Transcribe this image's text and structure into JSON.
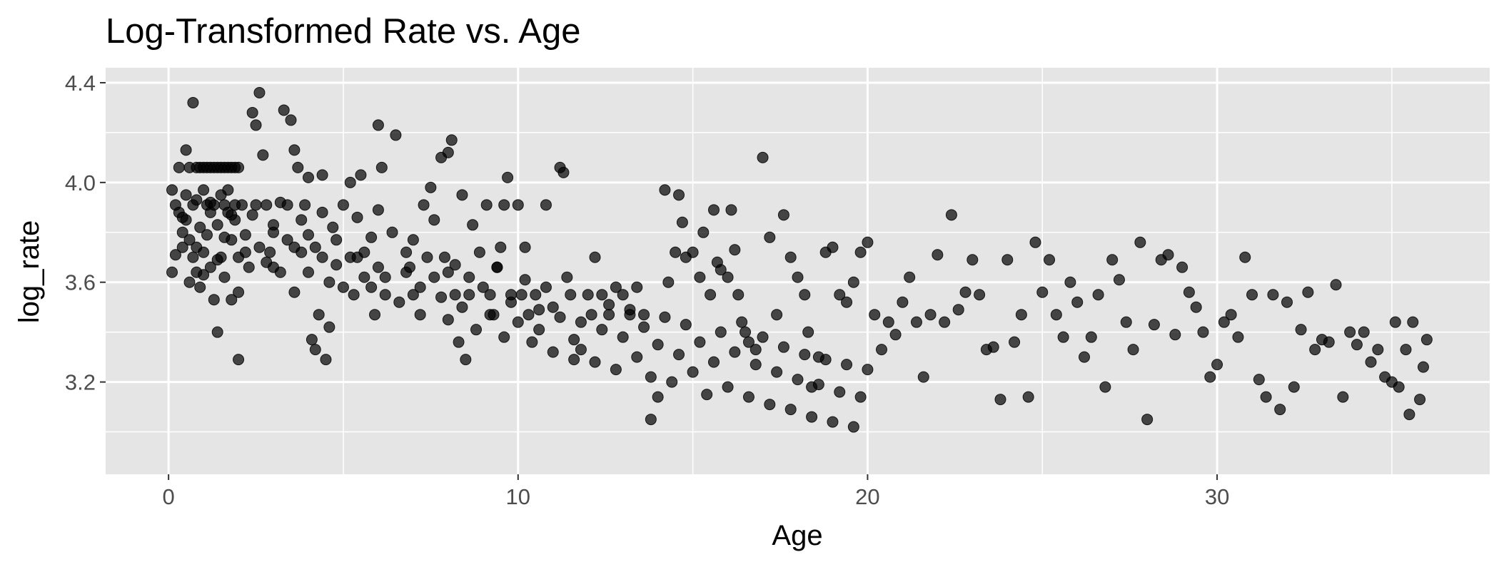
{
  "chart_data": {
    "type": "scatter",
    "title": "Log-Transformed Rate vs. Age",
    "xlabel": "Age",
    "ylabel": "log_rate",
    "xlim": [
      -1.8,
      37.8
    ],
    "ylim": [
      2.83,
      4.46
    ],
    "x_ticks": [
      0,
      10,
      20,
      30
    ],
    "x_tick_labels": [
      "0",
      "10",
      "20",
      "30"
    ],
    "y_ticks": [
      3.2,
      3.6,
      4.0,
      4.4
    ],
    "y_tick_labels": [
      "3.2",
      "3.6",
      "4.0",
      "4.4"
    ],
    "grid": true,
    "legend": "none",
    "colors": {
      "panel_background": "#e5e5e5",
      "grid": "#ffffff",
      "point": "#000000",
      "point_opacity": 0.7,
      "tick_text": "#4d4d4d"
    },
    "points": [
      [
        0.1,
        3.97
      ],
      [
        0.1,
        3.64
      ],
      [
        0.2,
        3.91
      ],
      [
        0.3,
        4.06
      ],
      [
        0.3,
        3.88
      ],
      [
        0.4,
        3.74
      ],
      [
        0.4,
        3.8
      ],
      [
        0.5,
        4.13
      ],
      [
        0.5,
        3.95
      ],
      [
        0.5,
        3.85
      ],
      [
        0.6,
        3.77
      ],
      [
        0.6,
        4.06
      ],
      [
        0.7,
        4.32
      ],
      [
        0.7,
        3.91
      ],
      [
        0.7,
        3.7
      ],
      [
        0.8,
        4.06
      ],
      [
        0.8,
        3.93
      ],
      [
        0.8,
        3.64
      ],
      [
        0.9,
        4.06
      ],
      [
        0.9,
        3.82
      ],
      [
        0.9,
        3.58
      ],
      [
        1.0,
        4.06
      ],
      [
        1.0,
        3.97
      ],
      [
        1.0,
        3.72
      ],
      [
        1.1,
        4.06
      ],
      [
        1.1,
        3.91
      ],
      [
        1.1,
        3.79
      ],
      [
        1.2,
        4.06
      ],
      [
        1.2,
        3.88
      ],
      [
        1.2,
        3.66
      ],
      [
        1.3,
        4.06
      ],
      [
        1.3,
        3.91
      ],
      [
        1.3,
        3.53
      ],
      [
        1.4,
        4.06
      ],
      [
        1.4,
        3.83
      ],
      [
        1.4,
        3.4
      ],
      [
        1.5,
        4.06
      ],
      [
        1.5,
        3.95
      ],
      [
        1.5,
        3.7
      ],
      [
        1.6,
        4.06
      ],
      [
        1.6,
        3.91
      ],
      [
        1.6,
        3.62
      ],
      [
        1.7,
        4.06
      ],
      [
        1.7,
        3.97
      ],
      [
        1.7,
        3.88
      ],
      [
        1.8,
        4.06
      ],
      [
        1.8,
        3.77
      ],
      [
        1.8,
        3.53
      ],
      [
        1.9,
        4.06
      ],
      [
        1.9,
        3.91
      ],
      [
        1.9,
        3.85
      ],
      [
        2.0,
        4.06
      ],
      [
        2.0,
        3.7
      ],
      [
        2.0,
        3.29
      ],
      [
        2.1,
        3.91
      ],
      [
        2.2,
        3.79
      ],
      [
        2.3,
        3.66
      ],
      [
        2.4,
        4.28
      ],
      [
        2.5,
        4.23
      ],
      [
        2.5,
        3.91
      ],
      [
        2.6,
        4.36
      ],
      [
        2.7,
        4.11
      ],
      [
        2.8,
        3.91
      ],
      [
        2.9,
        3.72
      ],
      [
        3.0,
        3.66
      ],
      [
        3.0,
        3.83
      ],
      [
        3.2,
        3.64
      ],
      [
        3.3,
        4.29
      ],
      [
        3.4,
        3.91
      ],
      [
        3.5,
        4.25
      ],
      [
        3.6,
        4.13
      ],
      [
        3.6,
        3.74
      ],
      [
        3.7,
        4.06
      ],
      [
        3.8,
        3.72
      ],
      [
        3.9,
        3.91
      ],
      [
        4.0,
        4.02
      ],
      [
        4.0,
        3.79
      ],
      [
        4.1,
        3.37
      ],
      [
        4.2,
        3.33
      ],
      [
        4.3,
        3.47
      ],
      [
        4.4,
        4.03
      ],
      [
        4.4,
        3.7
      ],
      [
        4.5,
        3.29
      ],
      [
        4.6,
        3.42
      ],
      [
        4.7,
        3.82
      ],
      [
        4.8,
        3.67
      ],
      [
        5.0,
        3.91
      ],
      [
        5.2,
        4.0
      ],
      [
        5.3,
        3.55
      ],
      [
        5.4,
        3.7
      ],
      [
        5.5,
        4.03
      ],
      [
        5.6,
        3.72
      ],
      [
        5.8,
        3.58
      ],
      [
        5.9,
        3.47
      ],
      [
        6.0,
        4.23
      ],
      [
        6.0,
        3.89
      ],
      [
        6.1,
        4.06
      ],
      [
        6.2,
        3.62
      ],
      [
        6.5,
        4.19
      ],
      [
        6.8,
        3.72
      ],
      [
        6.9,
        3.66
      ],
      [
        7.0,
        3.55
      ],
      [
        7.2,
        3.47
      ],
      [
        7.3,
        3.91
      ],
      [
        7.5,
        3.98
      ],
      [
        7.6,
        3.85
      ],
      [
        7.8,
        4.1
      ],
      [
        7.9,
        3.7
      ],
      [
        8.0,
        4.12
      ],
      [
        8.0,
        3.64
      ],
      [
        8.1,
        4.17
      ],
      [
        8.2,
        3.55
      ],
      [
        8.3,
        3.36
      ],
      [
        8.4,
        3.95
      ],
      [
        8.5,
        3.29
      ],
      [
        8.6,
        3.55
      ],
      [
        8.7,
        3.83
      ],
      [
        8.9,
        3.72
      ],
      [
        9.1,
        3.91
      ],
      [
        9.2,
        3.55
      ],
      [
        9.3,
        3.47
      ],
      [
        9.4,
        3.66
      ],
      [
        9.5,
        3.74
      ],
      [
        9.6,
        3.91
      ],
      [
        9.7,
        4.02
      ],
      [
        9.8,
        3.55
      ],
      [
        10.0,
        3.91
      ],
      [
        10.1,
        3.55
      ],
      [
        10.2,
        3.74
      ],
      [
        10.3,
        3.47
      ],
      [
        10.5,
        3.55
      ],
      [
        10.6,
        3.41
      ],
      [
        10.8,
        3.91
      ],
      [
        11.0,
        3.5
      ],
      [
        11.2,
        4.06
      ],
      [
        11.3,
        4.04
      ],
      [
        11.5,
        3.55
      ],
      [
        11.6,
        3.37
      ],
      [
        11.8,
        3.33
      ],
      [
        12.1,
        3.47
      ],
      [
        12.2,
        3.7
      ],
      [
        12.4,
        3.55
      ],
      [
        12.6,
        3.47
      ],
      [
        12.8,
        3.58
      ],
      [
        13.0,
        3.55
      ],
      [
        13.2,
        3.47
      ],
      [
        13.4,
        3.58
      ],
      [
        13.6,
        3.47
      ],
      [
        13.8,
        3.05
      ],
      [
        14.0,
        3.14
      ],
      [
        14.2,
        3.97
      ],
      [
        14.3,
        3.6
      ],
      [
        14.5,
        3.72
      ],
      [
        14.6,
        3.95
      ],
      [
        14.7,
        3.84
      ],
      [
        14.8,
        3.7
      ],
      [
        15.0,
        3.72
      ],
      [
        15.2,
        3.62
      ],
      [
        15.3,
        3.8
      ],
      [
        15.5,
        3.55
      ],
      [
        15.6,
        3.89
      ],
      [
        15.7,
        3.68
      ],
      [
        15.8,
        3.65
      ],
      [
        16.0,
        3.62
      ],
      [
        16.1,
        3.89
      ],
      [
        16.2,
        3.73
      ],
      [
        16.3,
        3.55
      ],
      [
        16.5,
        3.4
      ],
      [
        16.6,
        3.36
      ],
      [
        16.8,
        3.33
      ],
      [
        17.0,
        4.1
      ],
      [
        17.2,
        3.78
      ],
      [
        17.4,
        3.47
      ],
      [
        17.6,
        3.87
      ],
      [
        17.8,
        3.7
      ],
      [
        18.0,
        3.62
      ],
      [
        18.2,
        3.55
      ],
      [
        18.3,
        3.4
      ],
      [
        18.4,
        3.18
      ],
      [
        18.6,
        3.3
      ],
      [
        18.8,
        3.72
      ],
      [
        19.0,
        3.74
      ],
      [
        19.2,
        3.55
      ],
      [
        19.4,
        3.52
      ],
      [
        19.6,
        3.6
      ],
      [
        19.8,
        3.72
      ],
      [
        20.0,
        3.76
      ],
      [
        20.2,
        3.47
      ],
      [
        20.4,
        3.33
      ],
      [
        20.6,
        3.44
      ],
      [
        20.8,
        3.39
      ],
      [
        21.0,
        3.52
      ],
      [
        21.2,
        3.62
      ],
      [
        21.4,
        3.44
      ],
      [
        21.6,
        3.22
      ],
      [
        21.8,
        3.47
      ],
      [
        22.0,
        3.71
      ],
      [
        22.2,
        3.44
      ],
      [
        22.4,
        3.87
      ],
      [
        22.6,
        3.49
      ],
      [
        22.8,
        3.56
      ],
      [
        23.0,
        3.69
      ],
      [
        23.2,
        3.55
      ],
      [
        23.4,
        3.33
      ],
      [
        23.6,
        3.34
      ],
      [
        23.8,
        3.13
      ],
      [
        24.0,
        3.69
      ],
      [
        24.2,
        3.36
      ],
      [
        24.4,
        3.47
      ],
      [
        24.6,
        3.14
      ],
      [
        24.8,
        3.76
      ],
      [
        25.0,
        3.56
      ],
      [
        25.2,
        3.69
      ],
      [
        25.4,
        3.47
      ],
      [
        25.6,
        3.38
      ],
      [
        25.8,
        3.6
      ],
      [
        26.0,
        3.52
      ],
      [
        26.2,
        3.3
      ],
      [
        26.4,
        3.38
      ],
      [
        26.6,
        3.55
      ],
      [
        26.8,
        3.18
      ],
      [
        27.0,
        3.69
      ],
      [
        27.2,
        3.61
      ],
      [
        27.4,
        3.44
      ],
      [
        27.6,
        3.33
      ],
      [
        27.8,
        3.76
      ],
      [
        28.0,
        3.05
      ],
      [
        28.2,
        3.43
      ],
      [
        28.4,
        3.69
      ],
      [
        28.6,
        3.71
      ],
      [
        28.8,
        3.39
      ],
      [
        29.0,
        3.66
      ],
      [
        29.2,
        3.56
      ],
      [
        29.4,
        3.5
      ],
      [
        29.6,
        3.4
      ],
      [
        29.8,
        3.22
      ],
      [
        30.0,
        3.27
      ],
      [
        30.2,
        3.44
      ],
      [
        30.4,
        3.47
      ],
      [
        30.6,
        3.38
      ],
      [
        30.8,
        3.7
      ],
      [
        31.0,
        3.55
      ],
      [
        31.2,
        3.21
      ],
      [
        31.4,
        3.14
      ],
      [
        31.6,
        3.55
      ],
      [
        31.8,
        3.09
      ],
      [
        32.0,
        3.52
      ],
      [
        32.2,
        3.18
      ],
      [
        32.4,
        3.41
      ],
      [
        32.6,
        3.56
      ],
      [
        32.8,
        3.33
      ],
      [
        33.0,
        3.37
      ],
      [
        33.2,
        3.36
      ],
      [
        33.4,
        3.59
      ],
      [
        33.6,
        3.14
      ],
      [
        33.8,
        3.4
      ],
      [
        34.0,
        3.35
      ],
      [
        34.2,
        3.4
      ],
      [
        34.4,
        3.28
      ],
      [
        34.6,
        3.33
      ],
      [
        34.8,
        3.22
      ],
      [
        35.0,
        3.2
      ],
      [
        35.2,
        3.18
      ],
      [
        35.4,
        3.33
      ],
      [
        35.6,
        3.44
      ],
      [
        35.8,
        3.13
      ],
      [
        36.0,
        3.37
      ],
      [
        35.9,
        3.26
      ],
      [
        35.5,
        3.07
      ],
      [
        35.1,
        3.44
      ],
      [
        0.2,
        3.71
      ],
      [
        0.4,
        3.86
      ],
      [
        0.6,
        3.6
      ],
      [
        0.8,
        3.74
      ],
      [
        1.0,
        3.63
      ],
      [
        1.2,
        3.92
      ],
      [
        1.4,
        3.69
      ],
      [
        1.6,
        3.78
      ],
      [
        1.8,
        3.87
      ],
      [
        2.0,
        3.56
      ],
      [
        2.2,
        3.72
      ],
      [
        2.4,
        3.87
      ],
      [
        2.6,
        3.74
      ],
      [
        2.8,
        3.68
      ],
      [
        3.0,
        3.8
      ],
      [
        3.2,
        3.92
      ],
      [
        3.4,
        3.77
      ],
      [
        3.6,
        3.56
      ],
      [
        3.8,
        3.85
      ],
      [
        4.0,
        3.64
      ],
      [
        4.2,
        3.74
      ],
      [
        4.4,
        3.88
      ],
      [
        4.6,
        3.6
      ],
      [
        4.8,
        3.77
      ],
      [
        5.0,
        3.58
      ],
      [
        5.2,
        3.7
      ],
      [
        5.4,
        3.86
      ],
      [
        5.6,
        3.62
      ],
      [
        5.8,
        3.78
      ],
      [
        6.0,
        3.66
      ],
      [
        6.2,
        3.55
      ],
      [
        6.4,
        3.8
      ],
      [
        6.6,
        3.52
      ],
      [
        6.8,
        3.64
      ],
      [
        7.0,
        3.77
      ],
      [
        7.2,
        3.58
      ],
      [
        7.4,
        3.7
      ],
      [
        7.6,
        3.62
      ],
      [
        7.8,
        3.54
      ],
      [
        8.0,
        3.45
      ],
      [
        8.2,
        3.67
      ],
      [
        8.4,
        3.5
      ],
      [
        8.6,
        3.62
      ],
      [
        8.8,
        3.41
      ],
      [
        9.0,
        3.58
      ],
      [
        9.2,
        3.47
      ],
      [
        9.4,
        3.66
      ],
      [
        9.6,
        3.38
      ],
      [
        9.8,
        3.52
      ],
      [
        10.0,
        3.44
      ],
      [
        10.2,
        3.61
      ],
      [
        10.4,
        3.36
      ],
      [
        10.6,
        3.49
      ],
      [
        10.8,
        3.58
      ],
      [
        11.0,
        3.32
      ],
      [
        11.2,
        3.46
      ],
      [
        11.4,
        3.62
      ],
      [
        11.6,
        3.29
      ],
      [
        11.8,
        3.44
      ],
      [
        12.0,
        3.55
      ],
      [
        12.2,
        3.28
      ],
      [
        12.4,
        3.41
      ],
      [
        12.6,
        3.51
      ],
      [
        12.8,
        3.25
      ],
      [
        13.0,
        3.38
      ],
      [
        13.2,
        3.49
      ],
      [
        13.4,
        3.3
      ],
      [
        13.6,
        3.42
      ],
      [
        13.8,
        3.22
      ],
      [
        14.0,
        3.35
      ],
      [
        14.2,
        3.46
      ],
      [
        14.4,
        3.2
      ],
      [
        14.6,
        3.31
      ],
      [
        14.8,
        3.43
      ],
      [
        15.0,
        3.24
      ],
      [
        15.2,
        3.36
      ],
      [
        15.4,
        3.15
      ],
      [
        15.6,
        3.28
      ],
      [
        15.8,
        3.4
      ],
      [
        16.0,
        3.18
      ],
      [
        16.2,
        3.32
      ],
      [
        16.4,
        3.44
      ],
      [
        16.6,
        3.14
      ],
      [
        16.8,
        3.27
      ],
      [
        17.0,
        3.38
      ],
      [
        17.2,
        3.11
      ],
      [
        17.4,
        3.24
      ],
      [
        17.6,
        3.34
      ],
      [
        17.8,
        3.09
      ],
      [
        18.0,
        3.21
      ],
      [
        18.2,
        3.31
      ],
      [
        18.4,
        3.06
      ],
      [
        18.6,
        3.19
      ],
      [
        18.8,
        3.29
      ],
      [
        19.0,
        3.04
      ],
      [
        19.2,
        3.16
      ],
      [
        19.4,
        3.27
      ],
      [
        19.6,
        3.02
      ],
      [
        19.8,
        3.14
      ],
      [
        20.0,
        3.25
      ]
    ]
  }
}
